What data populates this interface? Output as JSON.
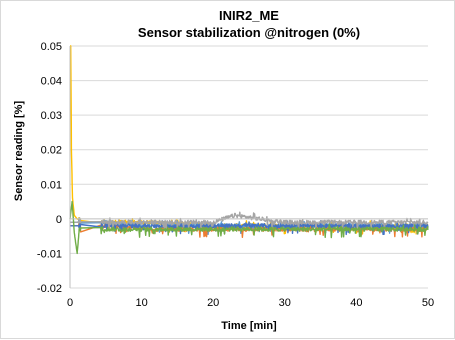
{
  "chart_data": {
    "type": "line",
    "title": "INIR2_ME",
    "subtitle": "Sensor stabilization @nitrogen (0%)",
    "xlabel": "Time [min]",
    "ylabel": "Sensor reading [%]",
    "xlim": [
      0,
      50
    ],
    "ylim": [
      -0.02,
      0.05
    ],
    "x_ticks": [
      "0",
      "10",
      "20",
      "30",
      "40",
      "50"
    ],
    "y_ticks": [
      "-0.02",
      "-0.01",
      "0",
      "0.01",
      "0.02",
      "0.03",
      "0.04",
      "0.05"
    ],
    "grid": true,
    "legend": "none",
    "colors": {
      "series_a": "#4472c4",
      "series_b": "#ed7d31",
      "series_c": "#a5a5a5",
      "series_d": "#ffc000",
      "series_e": "#5b9bd5",
      "series_f": "#70ad47",
      "grid": "#d9d9d9",
      "axis": "#bfbfbf"
    },
    "series": [
      {
        "color_key": "series_d",
        "x": [
          0.0,
          0.1,
          0.2,
          0.35,
          0.6,
          1.0,
          2,
          5,
          10,
          20,
          30,
          40,
          50
        ],
        "y": [
          0.05,
          0.05,
          0.02,
          0.006,
          0.001,
          0.0,
          -0.001,
          -0.001,
          -0.001,
          -0.002,
          -0.002,
          -0.002,
          -0.002
        ]
      },
      {
        "color_key": "series_e",
        "x": [
          0,
          1,
          2,
          5,
          10,
          20,
          30,
          40,
          50
        ],
        "y": [
          -0.001,
          -0.001,
          -0.001,
          -0.001,
          -0.002,
          -0.002,
          -0.002,
          -0.002,
          -0.002
        ]
      },
      {
        "color_key": "series_b",
        "x": [
          0,
          1,
          2,
          5,
          10,
          20,
          30,
          40,
          50
        ],
        "y": [
          -0.002,
          -0.002,
          -0.002,
          -0.002,
          -0.003,
          -0.003,
          -0.003,
          -0.003,
          -0.003
        ]
      },
      {
        "color_key": "series_a",
        "x": [
          0,
          1,
          2,
          5,
          10,
          20,
          30,
          40,
          50
        ],
        "y": [
          -0.002,
          -0.002,
          -0.002,
          -0.002,
          -0.002,
          -0.002,
          -0.002,
          -0.002,
          -0.002
        ]
      },
      {
        "color_key": "series_c",
        "x": [
          0,
          1,
          2,
          5,
          10,
          20,
          23,
          30,
          40,
          50
        ],
        "y": [
          -0.001,
          -0.001,
          0.0,
          -0.001,
          -0.001,
          -0.001,
          0.001,
          -0.001,
          -0.001,
          -0.001
        ]
      },
      {
        "color_key": "series_f",
        "x": [
          0.0,
          0.3,
          0.6,
          1.0,
          1.3,
          2,
          5,
          10,
          20,
          30,
          40,
          50
        ],
        "y": [
          0.0,
          0.005,
          -0.004,
          -0.01,
          -0.003,
          -0.002,
          -0.003,
          -0.003,
          -0.003,
          -0.003,
          -0.003,
          -0.003
        ]
      }
    ]
  }
}
